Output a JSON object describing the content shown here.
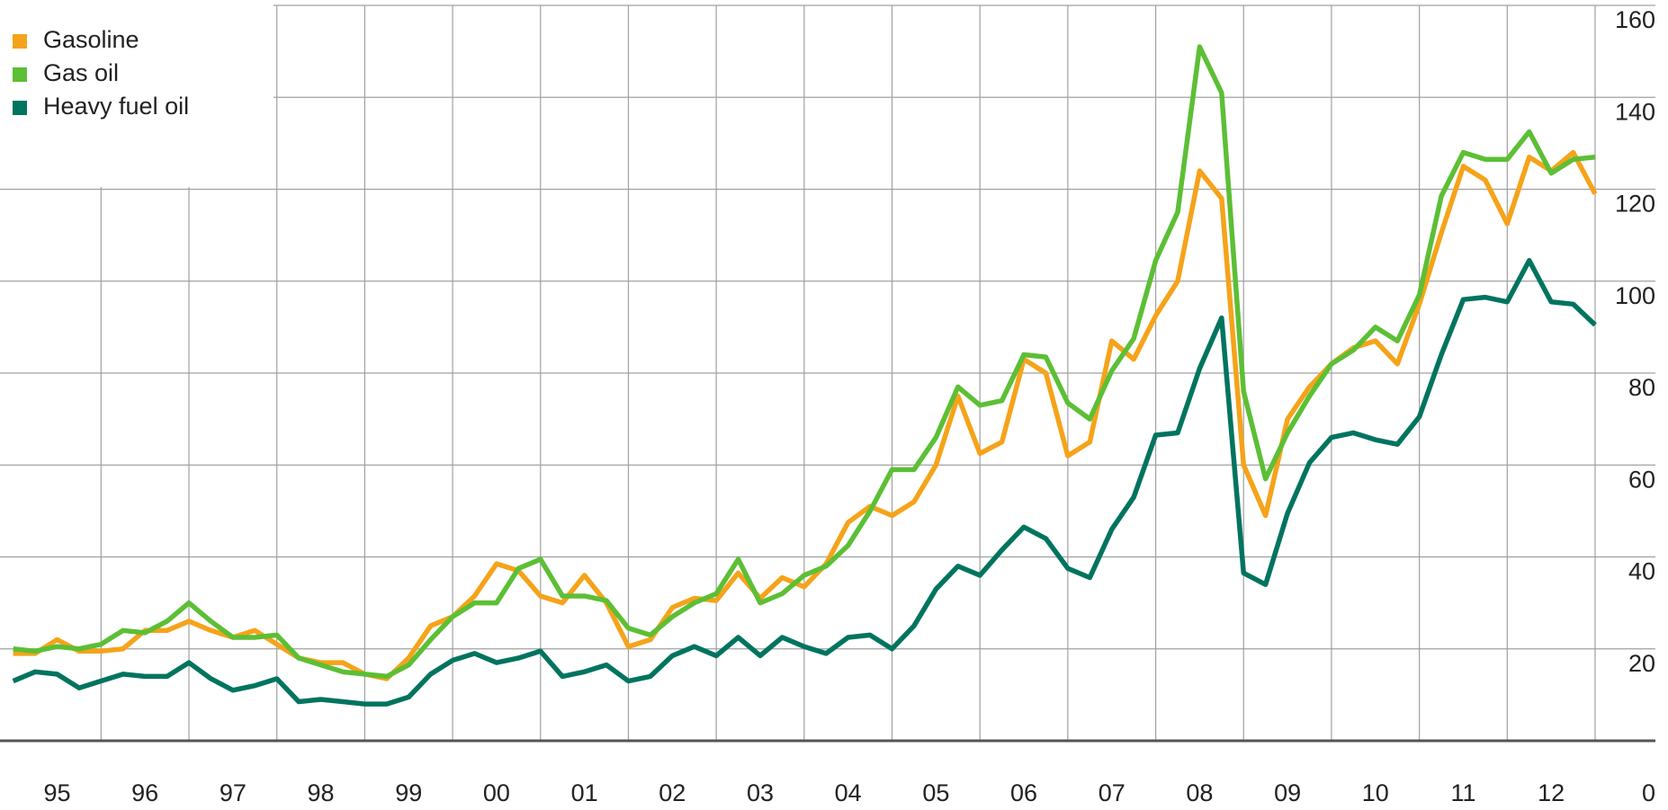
{
  "chart_data": {
    "type": "line",
    "x": [
      1995,
      1995.25,
      1995.5,
      1995.75,
      1996,
      1996.25,
      1996.5,
      1996.75,
      1997,
      1997.25,
      1997.5,
      1997.75,
      1998,
      1998.25,
      1998.5,
      1998.75,
      1999,
      1999.25,
      1999.5,
      1999.75,
      2000,
      2000.25,
      2000.5,
      2000.75,
      2001,
      2001.25,
      2001.5,
      2001.75,
      2002,
      2002.25,
      2002.5,
      2002.75,
      2003,
      2003.25,
      2003.5,
      2003.75,
      2004,
      2004.25,
      2004.5,
      2004.75,
      2005,
      2005.25,
      2005.5,
      2005.75,
      2006,
      2006.25,
      2006.5,
      2006.75,
      2007,
      2007.25,
      2007.5,
      2007.75,
      2008,
      2008.25,
      2008.5,
      2008.75,
      2009,
      2009.25,
      2009.5,
      2009.75,
      2010,
      2010.25,
      2010.5,
      2010.75,
      2011,
      2011.25,
      2011.5,
      2011.75,
      2012,
      2012.25,
      2012.5,
      2012.75,
      2013
    ],
    "series": [
      {
        "name": "Gasoline",
        "color": "#f5a31a",
        "values": [
          19,
          19,
          22,
          19.5,
          19.5,
          20,
          24,
          24,
          26,
          24,
          22.5,
          24,
          21,
          18,
          17,
          17,
          14.5,
          13.5,
          18,
          25,
          27,
          31.5,
          38.5,
          37,
          31.5,
          30,
          36,
          30,
          20.5,
          22,
          29,
          31,
          30.5,
          36.5,
          31,
          35.5,
          33.5,
          38.5,
          47.5,
          51,
          49,
          52,
          60,
          75,
          62.5,
          65,
          83,
          80,
          62,
          65,
          87,
          83,
          92.5,
          100,
          124,
          118,
          60,
          49,
          70,
          77,
          82,
          85.5,
          87,
          82,
          95,
          110.5,
          125,
          122,
          112.5,
          127,
          124,
          128,
          119
        ]
      },
      {
        "name": "Gas oil",
        "color": "#5cbf35",
        "values": [
          20,
          19.5,
          20.5,
          20,
          21,
          24,
          23.5,
          26,
          30,
          26,
          22.5,
          22.5,
          23,
          18,
          16.5,
          15,
          14.5,
          14,
          16.5,
          22,
          27,
          30,
          30,
          37.5,
          39.5,
          31.5,
          31.5,
          30.5,
          24.5,
          23,
          27,
          30,
          32,
          39.5,
          30,
          32,
          36,
          38,
          42.5,
          50,
          59,
          59,
          66,
          77,
          73,
          74,
          84,
          83.5,
          73.5,
          70,
          80.5,
          87.5,
          104.5,
          115,
          151,
          141,
          76,
          57,
          67,
          75,
          82,
          85,
          90,
          87,
          97,
          118.5,
          128,
          126.5,
          126.5,
          132.5,
          123.5,
          126.5,
          127
        ]
      },
      {
        "name": "Heavy fuel oil",
        "color": "#00745f",
        "values": [
          13,
          15,
          14.5,
          11.5,
          13,
          14.5,
          14,
          14,
          17,
          13.5,
          11,
          12,
          13.5,
          8.5,
          9,
          8.5,
          8,
          8,
          9.5,
          14.5,
          17.5,
          19,
          17,
          18,
          19.5,
          14,
          15,
          16.5,
          13,
          14,
          18.5,
          20.5,
          18.5,
          22.5,
          18.5,
          22.5,
          20.5,
          19,
          22.5,
          23,
          20,
          25,
          33,
          38,
          36,
          41.5,
          46.5,
          44,
          37.5,
          35.5,
          46,
          53,
          66.5,
          67,
          81,
          92,
          36.5,
          34,
          49.5,
          60.5,
          66,
          67,
          65.5,
          64.5,
          70.5,
          84,
          96,
          96.5,
          95.5,
          104.5,
          95.5,
          95,
          90.5
        ]
      }
    ],
    "xlim": [
      1994.85,
      2013
    ],
    "xticks": [
      {
        "value": 1995.5,
        "label": "95"
      },
      {
        "value": 1996.5,
        "label": "96"
      },
      {
        "value": 1997.5,
        "label": "97"
      },
      {
        "value": 1998.5,
        "label": "98"
      },
      {
        "value": 1999.5,
        "label": "99"
      },
      {
        "value": 2000.5,
        "label": "00"
      },
      {
        "value": 2001.5,
        "label": "01"
      },
      {
        "value": 2002.5,
        "label": "02"
      },
      {
        "value": 2003.5,
        "label": "03"
      },
      {
        "value": 2004.5,
        "label": "04"
      },
      {
        "value": 2005.5,
        "label": "05"
      },
      {
        "value": 2006.5,
        "label": "06"
      },
      {
        "value": 2007.5,
        "label": "07"
      },
      {
        "value": 2008.5,
        "label": "08"
      },
      {
        "value": 2009.5,
        "label": "09"
      },
      {
        "value": 2010.5,
        "label": "10"
      },
      {
        "value": 2011.5,
        "label": "11"
      },
      {
        "value": 2012.5,
        "label": "12"
      }
    ],
    "ylim": [
      0,
      160
    ],
    "yticks": [
      0,
      20,
      40,
      60,
      80,
      100,
      120,
      140,
      160
    ],
    "grid": true,
    "legend": "top-left"
  }
}
